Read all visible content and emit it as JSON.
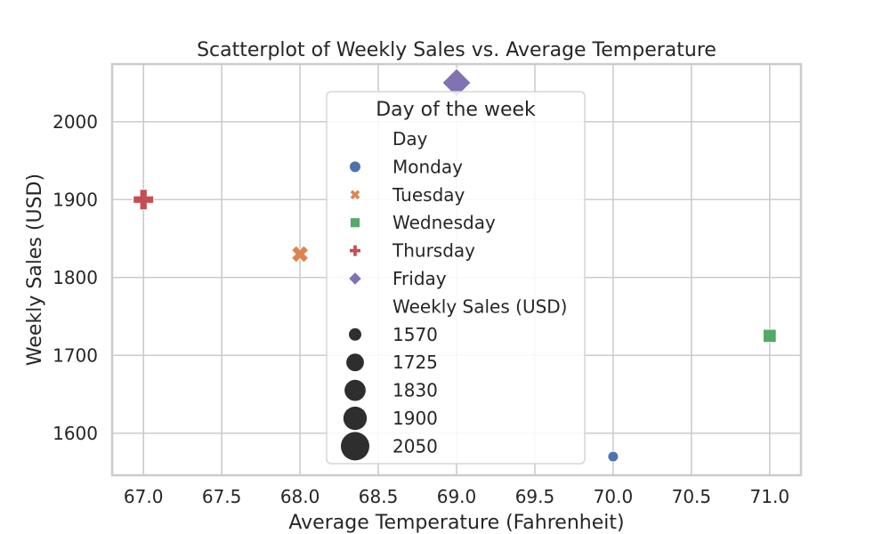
{
  "chart_data": {
    "type": "scatter",
    "title": "Scatterplot of Weekly Sales vs. Average Temperature",
    "xlabel": "Average Temperature (Fahrenheit)",
    "ylabel": "Weekly Sales (USD)",
    "xlim": [
      66.8,
      71.2
    ],
    "ylim": [
      1546,
      2074
    ],
    "x_ticks": [
      67.0,
      67.5,
      68.0,
      68.5,
      69.0,
      69.5,
      70.0,
      70.5,
      71.0
    ],
    "y_ticks": [
      1600,
      1700,
      1800,
      1900,
      2000
    ],
    "grid": true,
    "points": [
      {
        "day": "Monday",
        "x": 70.0,
        "y": 1570,
        "color": "#4c72b0",
        "marker": "circle"
      },
      {
        "day": "Tuesday",
        "x": 68.0,
        "y": 1830,
        "color": "#dd8452",
        "marker": "x"
      },
      {
        "day": "Wednesday",
        "x": 71.0,
        "y": 1725,
        "color": "#55a868",
        "marker": "square"
      },
      {
        "day": "Thursday",
        "x": 67.0,
        "y": 1900,
        "color": "#c44e52",
        "marker": "plus"
      },
      {
        "day": "Friday",
        "x": 69.0,
        "y": 2050,
        "color": "#8172b3",
        "marker": "diamond"
      }
    ],
    "size_range": [
      1570,
      2050
    ],
    "legend": {
      "title": "Day of the week",
      "placement": "upper-center",
      "hue_header": "Day",
      "hue_entries": [
        {
          "label": "Monday",
          "color": "#4c72b0",
          "marker": "circle"
        },
        {
          "label": "Tuesday",
          "color": "#dd8452",
          "marker": "x"
        },
        {
          "label": "Wednesday",
          "color": "#55a868",
          "marker": "square"
        },
        {
          "label": "Thursday",
          "color": "#c44e52",
          "marker": "plus"
        },
        {
          "label": "Friday",
          "color": "#8172b3",
          "marker": "diamond"
        }
      ],
      "size_header": "Weekly Sales (USD)",
      "size_entries": [
        {
          "label": "1570",
          "value": 1570
        },
        {
          "label": "1725",
          "value": 1725
        },
        {
          "label": "1830",
          "value": 1830
        },
        {
          "label": "1900",
          "value": 1900
        },
        {
          "label": "2050",
          "value": 2050
        }
      ],
      "size_color": "#2e2e2e"
    }
  }
}
